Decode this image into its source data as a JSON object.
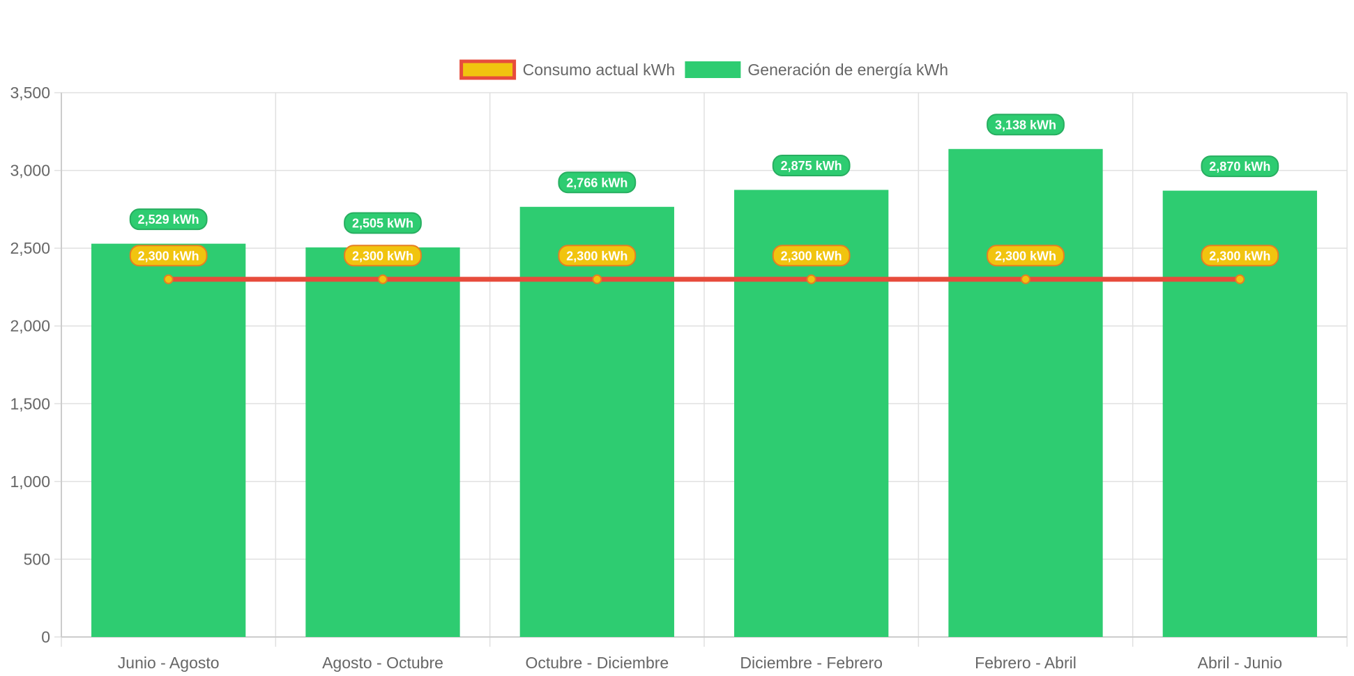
{
  "chart_data": {
    "type": "bar",
    "categories": [
      "Junio - Agosto",
      "Agosto - Octubre",
      "Octubre - Diciembre",
      "Diciembre - Febrero",
      "Febrero - Abril",
      "Abril - Junio"
    ],
    "series": [
      {
        "name": "Generación de energía kWh",
        "type": "bar",
        "values": [
          2529,
          2505,
          2766,
          2875,
          3138,
          2870
        ],
        "labels": [
          "2,529 kWh",
          "2,505 kWh",
          "2,766 kWh",
          "2,875 kWh",
          "3,138 kWh",
          "2,870 kWh"
        ],
        "color": "#2ecc71",
        "label_bg": "#2ecc71",
        "label_border": "#27ae60"
      },
      {
        "name": "Consumo actual kWh",
        "type": "line",
        "values": [
          2300,
          2300,
          2300,
          2300,
          2300,
          2300
        ],
        "labels": [
          "2,300 kWh",
          "2,300 kWh",
          "2,300 kWh",
          "2,300 kWh",
          "2,300 kWh",
          "2,300 kWh"
        ],
        "color": "#e74c3c",
        "point_fill": "#f1c40f",
        "label_bg": "#f1c40f",
        "label_border": "#e67e22"
      }
    ],
    "legend": {
      "position": "top",
      "order": [
        "Consumo actual kWh",
        "Generación de energía kWh"
      ]
    },
    "ylim": [
      0,
      3500
    ],
    "yticks": [
      0,
      500,
      1000,
      1500,
      2000,
      2500,
      3000,
      3500
    ],
    "ytick_labels": [
      "0",
      "500",
      "1,000",
      "1,500",
      "2,000",
      "2,500",
      "3,000",
      "3,500"
    ],
    "grid": true,
    "title": "",
    "xlabel": "",
    "ylabel": ""
  }
}
